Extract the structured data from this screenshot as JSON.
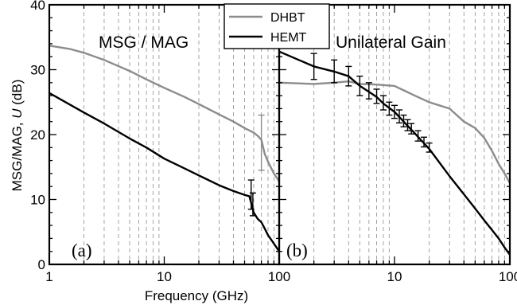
{
  "chart_data": [
    {
      "type": "line",
      "panel_label": "(a)",
      "title": "MSG / MAG",
      "xlabel": "Frequency (GHz)",
      "ylabel": "MSG/MAG, U (dB)",
      "xscale": "log",
      "xlim": [
        1,
        100
      ],
      "ylim": [
        0,
        40
      ],
      "xticks": [
        "1",
        "10",
        "100"
      ],
      "yticks": [
        "0",
        "10",
        "20",
        "30",
        "40"
      ],
      "grid": "vertical dashed at minor log ticks",
      "series": [
        {
          "name": "DHBT",
          "color": "#8c8c8c",
          "x": [
            1,
            1.5,
            2,
            3,
            5,
            7,
            10,
            15,
            20,
            30,
            40,
            50,
            60,
            65,
            70,
            75,
            80,
            90,
            100,
            105
          ],
          "y": [
            33.7,
            33.2,
            32.6,
            31.5,
            29.8,
            28.5,
            27.2,
            25.8,
            24.7,
            23.1,
            22.0,
            21.0,
            20.3,
            19.8,
            19.2,
            17.0,
            15.8,
            14.0,
            12.8,
            12.2
          ],
          "errorbars": [
            {
              "x": 70,
              "lo": 14.5,
              "hi": 23.0
            }
          ]
        },
        {
          "name": "HEMT",
          "color": "#000000",
          "x": [
            1,
            2,
            3,
            5,
            7,
            10,
            15,
            20,
            30,
            40,
            50,
            55,
            57,
            60,
            65,
            70,
            75,
            80,
            90,
            100,
            105
          ],
          "y": [
            26.4,
            23.4,
            21.7,
            19.4,
            18.0,
            16.3,
            14.8,
            13.7,
            12.2,
            11.3,
            10.7,
            10.5,
            9.5,
            8.0,
            7.0,
            6.5,
            5.5,
            4.5,
            3.2,
            2.0,
            1.3
          ],
          "errorbars": [
            {
              "x": 57,
              "lo": 8.5,
              "hi": 13.0
            },
            {
              "x": 59,
              "lo": 7.5,
              "hi": 11.0
            }
          ]
        }
      ]
    },
    {
      "type": "line",
      "panel_label": "(b)",
      "title": "Unilateral Gain",
      "xlabel": "Frequency (GHz)",
      "xscale": "log",
      "xlim": [
        1,
        100
      ],
      "ylim": [
        0,
        40
      ],
      "xticks": [
        "10",
        "100"
      ],
      "grid": "vertical dashed at minor log ticks",
      "series": [
        {
          "name": "DHBT",
          "color": "#8c8c8c",
          "x": [
            1,
            2,
            3,
            4,
            5,
            7,
            10,
            15,
            20,
            30,
            40,
            50,
            60,
            70,
            80,
            90,
            100,
            105
          ],
          "y": [
            28.0,
            27.8,
            28.0,
            28.2,
            27.8,
            27.7,
            27.5,
            26.0,
            25.0,
            24.0,
            22.0,
            21.0,
            19.5,
            17.5,
            15.5,
            14.0,
            12.5,
            11.8
          ],
          "errorbars": []
        },
        {
          "name": "HEMT",
          "color": "#000000",
          "x": [
            1,
            2,
            3,
            4,
            5,
            6,
            7,
            8,
            10,
            12,
            15,
            20,
            30,
            40,
            50,
            60,
            70,
            80,
            90,
            100,
            105
          ],
          "y": [
            32.8,
            30.5,
            29.7,
            29.0,
            27.5,
            26.6,
            25.8,
            24.8,
            23.5,
            22.0,
            20.2,
            17.8,
            13.6,
            10.8,
            8.6,
            6.8,
            5.3,
            4.0,
            2.6,
            1.5,
            1.2
          ],
          "errorbars": [
            {
              "x": 2,
              "lo": 28.5,
              "hi": 32.5
            },
            {
              "x": 3,
              "lo": 28.0,
              "hi": 31.5
            },
            {
              "x": 4,
              "lo": 27.5,
              "hi": 30.5
            },
            {
              "x": 5,
              "lo": 26.0,
              "hi": 29.0
            },
            {
              "x": 6,
              "lo": 25.5,
              "hi": 28.0
            },
            {
              "x": 7,
              "lo": 24.8,
              "hi": 27.0
            },
            {
              "x": 8,
              "lo": 23.8,
              "hi": 26.0
            },
            {
              "x": 9,
              "lo": 23.0,
              "hi": 25.0
            },
            {
              "x": 10,
              "lo": 22.5,
              "hi": 24.5
            },
            {
              "x": 11,
              "lo": 21.8,
              "hi": 23.8
            },
            {
              "x": 12,
              "lo": 21.2,
              "hi": 23.0
            },
            {
              "x": 13,
              "lo": 20.6,
              "hi": 22.3
            },
            {
              "x": 14,
              "lo": 20.1,
              "hi": 21.7
            },
            {
              "x": 16,
              "lo": 19.0,
              "hi": 20.6
            },
            {
              "x": 18,
              "lo": 18.1,
              "hi": 19.6
            },
            {
              "x": 20,
              "lo": 17.3,
              "hi": 18.7
            }
          ]
        }
      ]
    }
  ],
  "legend": {
    "entries": [
      {
        "label": "DHBT",
        "color": "#8c8c8c"
      },
      {
        "label": "HEMT",
        "color": "#000000"
      }
    ]
  }
}
